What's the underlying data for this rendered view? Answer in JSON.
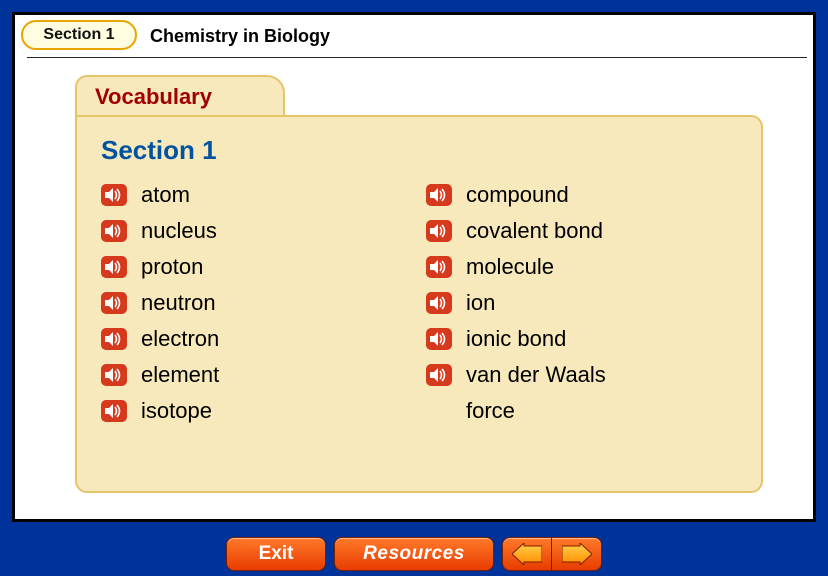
{
  "header": {
    "section_pill": "Section 1",
    "title": "Chemistry in Biology"
  },
  "folder": {
    "tab_label": "Vocabulary",
    "section_heading": "Section 1",
    "left_terms": [
      "atom",
      "nucleus",
      "proton",
      "neutron",
      "electron",
      "element",
      "isotope"
    ],
    "right_terms": [
      "compound",
      "covalent bond",
      "molecule",
      "ion",
      "ionic bond",
      "van der Waals"
    ],
    "right_continuation": "force"
  },
  "footer": {
    "exit_label": "Exit",
    "resources_label": "Resources"
  },
  "style": {
    "bg": "#003399",
    "folder_fill": "#f7e9bc",
    "folder_border": "#e6c46a",
    "accent_red": "#a00000",
    "accent_blue": "#00539f",
    "speaker_bg": "#d63a1c",
    "btn_top": "#ff7a2a",
    "btn_bottom": "#e83c00",
    "arrow_top": "#ffd24a",
    "arrow_bottom": "#ff8a00"
  }
}
